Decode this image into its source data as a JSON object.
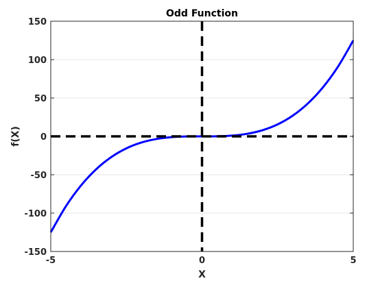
{
  "chart_data": {
    "type": "line",
    "title": "Odd Function",
    "xlabel": "X",
    "ylabel": "f(X)",
    "xlim": [
      -5,
      5
    ],
    "ylim": [
      -150,
      150
    ],
    "x_ticks": [
      -5,
      0,
      5
    ],
    "y_ticks": [
      -150,
      -100,
      -50,
      0,
      50,
      100,
      150
    ],
    "x_tick_labels": [
      "-5",
      "0",
      "5"
    ],
    "y_tick_labels": [
      "-150",
      "-100",
      "-50",
      "0",
      "50",
      "100",
      "150"
    ],
    "grid": true,
    "series": [
      {
        "color": "#0000ff",
        "line_style": "solid",
        "x": [
          -5,
          -4.5,
          -4,
          -3.5,
          -3,
          -2.5,
          -2,
          -1.5,
          -1,
          -0.5,
          0,
          0.5,
          1,
          1.5,
          2,
          2.5,
          3,
          3.5,
          4,
          4.5,
          5
        ],
        "y": [
          -125,
          -91.1,
          -64,
          -42.9,
          -27,
          -15.6,
          -8,
          -3.4,
          -1,
          -0.1,
          0,
          0.1,
          1,
          3.4,
          8,
          15.6,
          27,
          42.9,
          64,
          91.1,
          125
        ]
      }
    ],
    "reference_lines": [
      {
        "orientation": "horizontal",
        "value": 0,
        "color": "#000000",
        "line_style": "dashed"
      },
      {
        "orientation": "vertical",
        "value": 0,
        "color": "#000000",
        "line_style": "dashed"
      }
    ]
  }
}
